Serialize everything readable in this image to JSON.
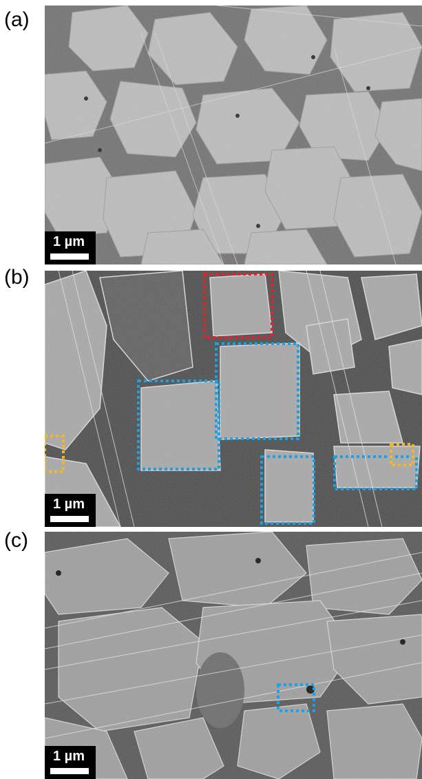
{
  "panels": [
    {
      "label": "(a)",
      "scale_bar": "1 µm"
    },
    {
      "label": "(b)",
      "scale_bar": "1 µm"
    },
    {
      "label": "(c)",
      "scale_bar": "1 µm"
    }
  ],
  "colors": {
    "red_box": "#e8202a",
    "blue_box": "#1aa3e0",
    "orange_box": "#f5b820"
  }
}
